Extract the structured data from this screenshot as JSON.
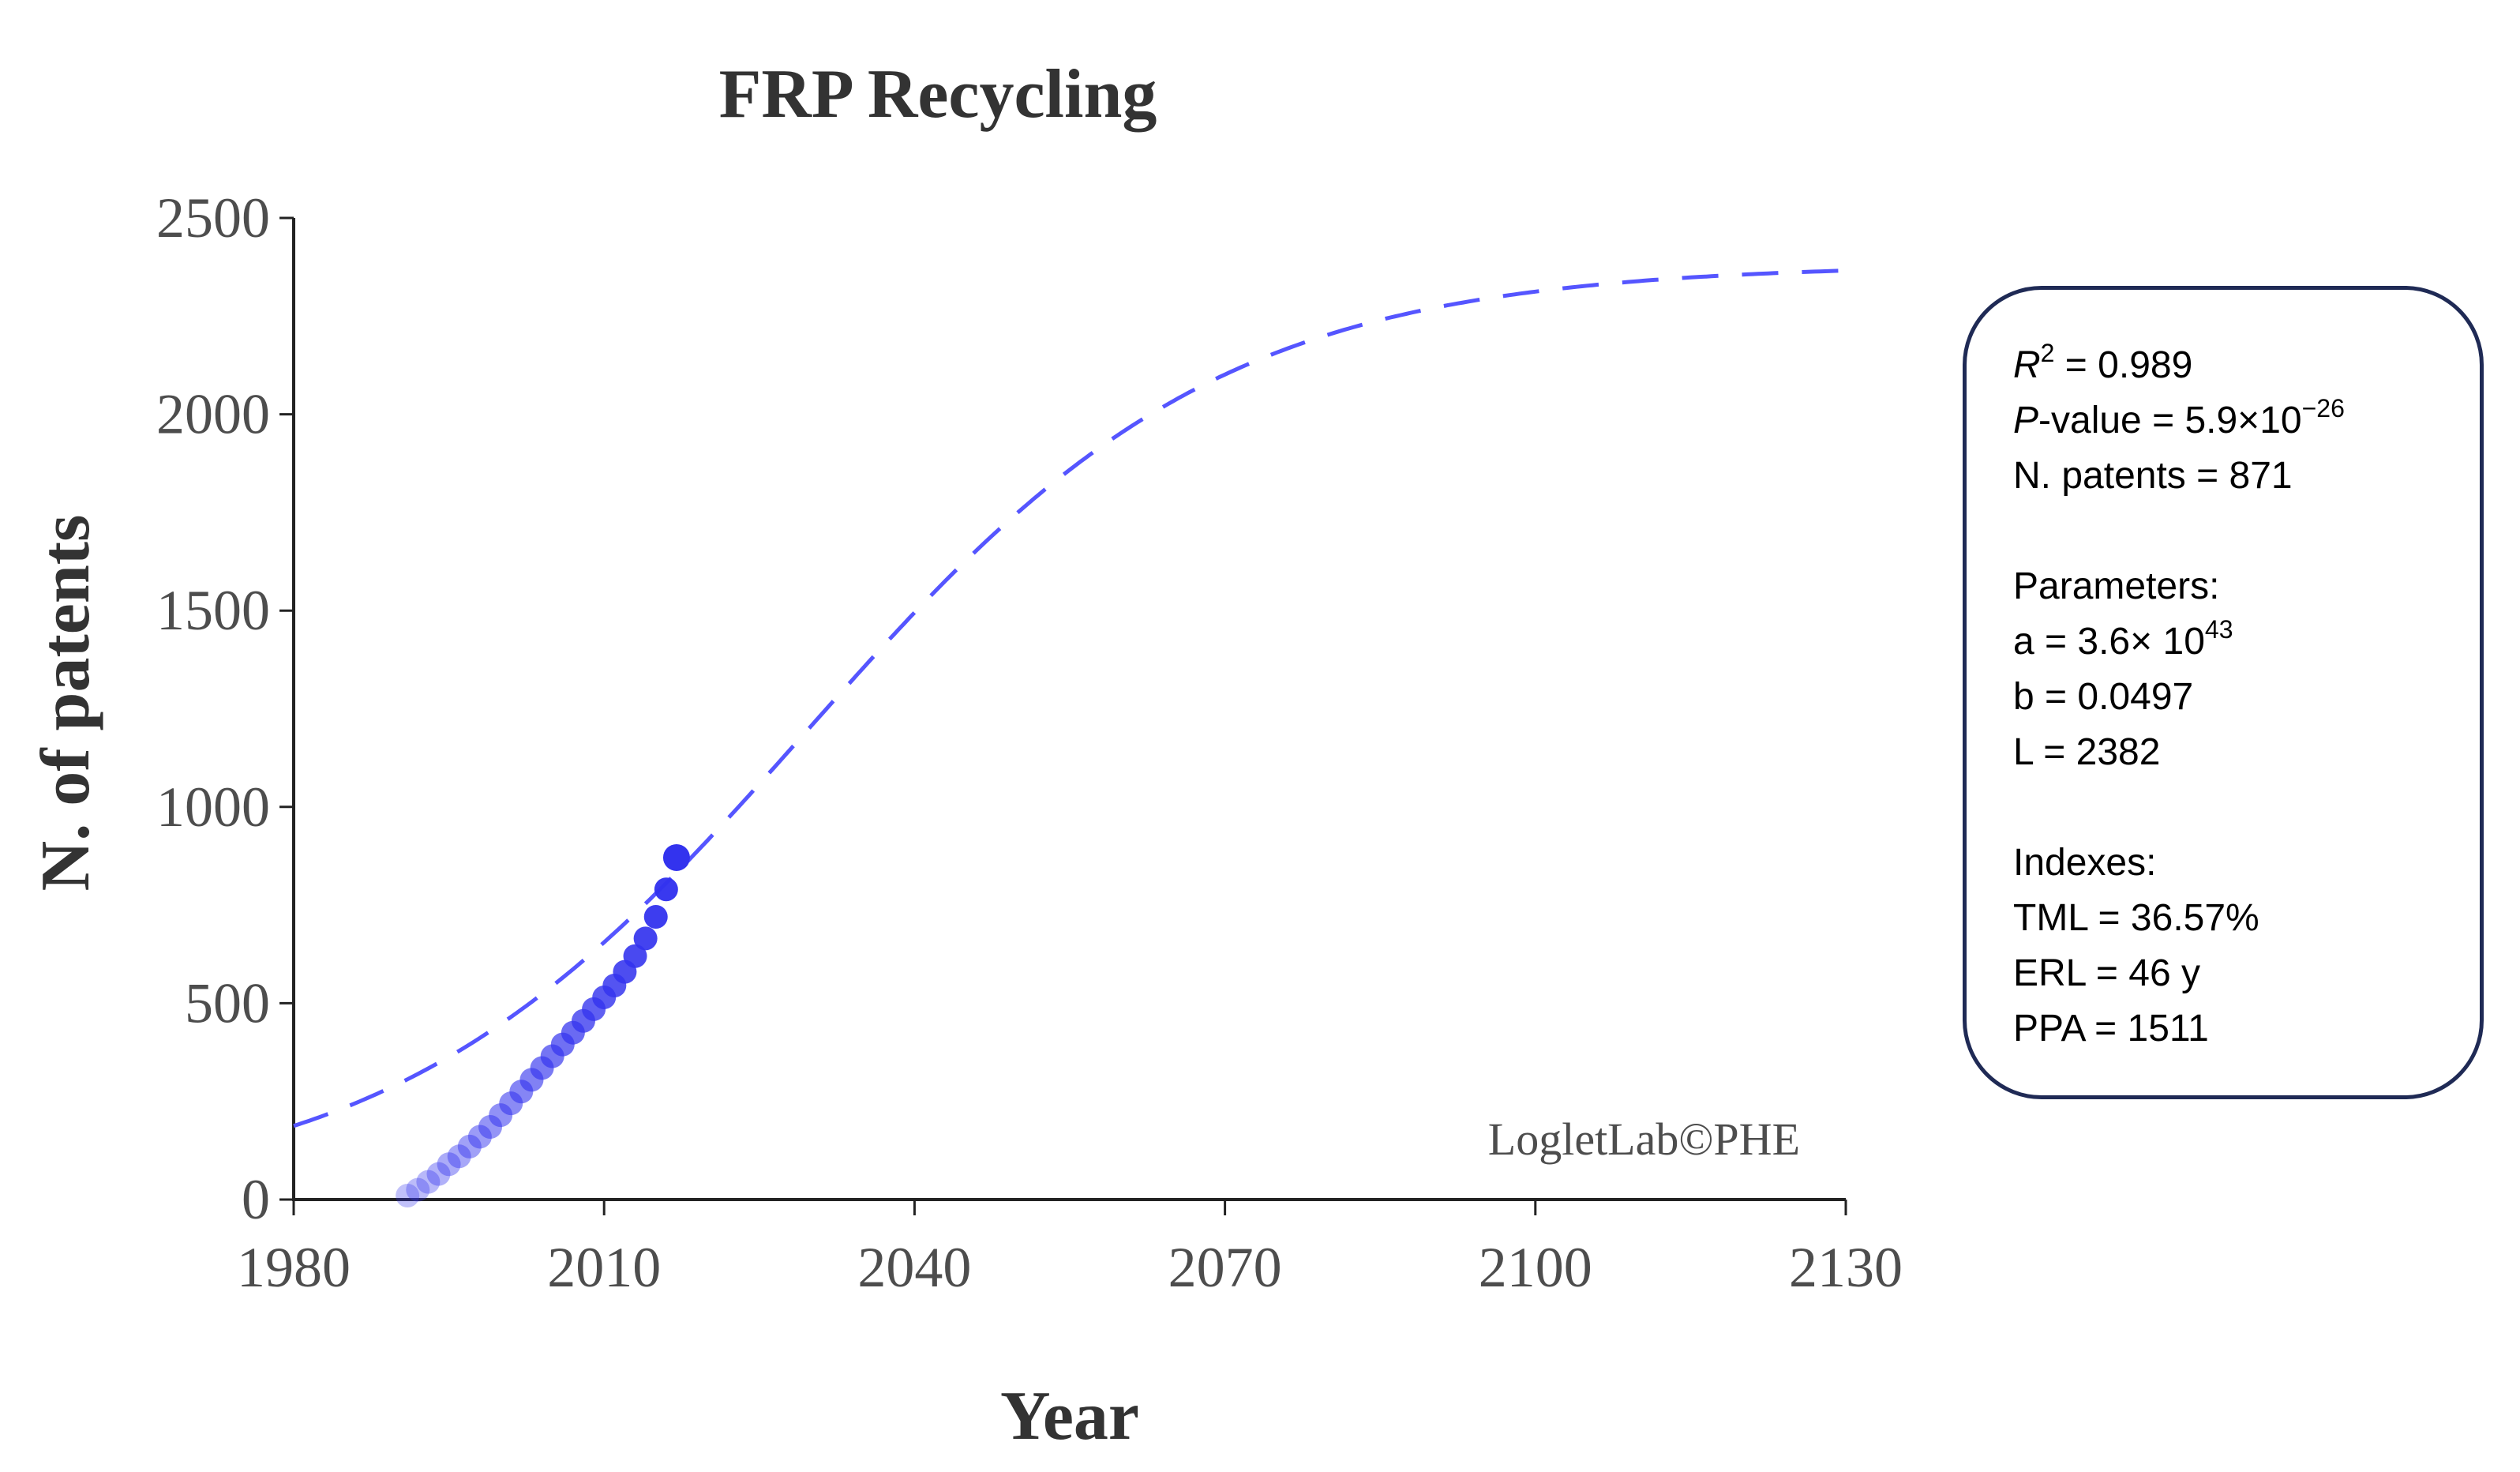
{
  "chart_data": {
    "type": "line",
    "title": "FRP Recycling",
    "xlabel": "Year",
    "ylabel": "N. of patents",
    "xlim": [
      1980,
      2130
    ],
    "ylim": [
      0,
      2500
    ],
    "x_ticks": [
      "1980",
      "2010",
      "2040",
      "2070",
      "2100",
      "2130"
    ],
    "y_ticks": [
      "0",
      "500",
      "1000",
      "1500",
      "2000",
      "2500"
    ],
    "grid": false,
    "series": [
      {
        "style": "markers",
        "color": "#3333ee",
        "x": [
          1991,
          1992,
          1993,
          1994,
          1995,
          1996,
          1997,
          1998,
          1999,
          2000,
          2001,
          2002,
          2003,
          2004,
          2005,
          2006,
          2007,
          2008,
          2009,
          2010,
          2011,
          2012,
          2013,
          2014,
          2015,
          2016,
          2017
        ],
        "y": [
          10,
          25,
          45,
          65,
          90,
          110,
          135,
          160,
          185,
          215,
          245,
          275,
          305,
          335,
          365,
          395,
          425,
          455,
          485,
          515,
          545,
          580,
          620,
          665,
          720,
          790,
          871
        ]
      },
      {
        "style": "dashed-fit",
        "color": "#5555ff",
        "model": "logistic",
        "L": 2382,
        "b": 0.0497,
        "x_start": 1980,
        "x_end": 2130,
        "x_mid": 2029.5
      }
    ],
    "annotations": [
      "LogletLab©PHE"
    ]
  },
  "stats": {
    "r2_label": "R",
    "r2_sup": "2",
    "r2_value": " = 0.989",
    "p_label": "P",
    "p_mid": "-value = 5.9×10",
    "p_sup": "−26",
    "n_patents": "N. patents = 871",
    "params_heading": "Parameters:",
    "a_value": "a = 3.6× 10",
    "a_sup": "43",
    "b_value": "b = 0.0497",
    "l_value": "L = 2382",
    "indexes_heading": "Indexes:",
    "tml": "TML = 36.57%",
    "erl": "ERL =  46 y",
    "ppa": "PPA = 1511"
  }
}
